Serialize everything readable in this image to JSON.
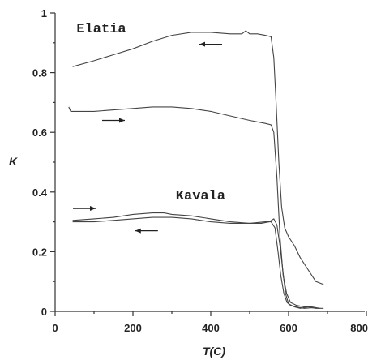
{
  "chart_data": {
    "type": "line",
    "xlabel": "T(C)",
    "ylabel": "K",
    "xlim": [
      0,
      800
    ],
    "ylim": [
      0,
      1
    ],
    "x_ticks": [
      "0",
      "200",
      "400",
      "600",
      "800"
    ],
    "y_ticks": [
      "0",
      "0.2",
      "0.4",
      "0.6",
      "0.8",
      "1"
    ],
    "grid": false,
    "annotations": [
      {
        "text": "Elatia",
        "x": 55,
        "y": 0.935
      },
      {
        "text": "Kavala",
        "x": 310,
        "y": 0.375
      }
    ],
    "arrows": [
      {
        "direction": "left",
        "x": 400,
        "y": 0.895
      },
      {
        "direction": "right",
        "x": 150,
        "y": 0.64
      },
      {
        "direction": "right",
        "x": 75,
        "y": 0.345
      },
      {
        "direction": "left",
        "x": 235,
        "y": 0.27
      }
    ],
    "series": [
      {
        "x": [
          45,
          100,
          150,
          200,
          250,
          300,
          350,
          400,
          450,
          480,
          490,
          500,
          520,
          540,
          555,
          562,
          568,
          575,
          582,
          590,
          600,
          615,
          630,
          650,
          670,
          690
        ],
        "values": [
          0.82,
          0.84,
          0.86,
          0.88,
          0.905,
          0.925,
          0.935,
          0.935,
          0.93,
          0.93,
          0.94,
          0.93,
          0.93,
          0.925,
          0.92,
          0.85,
          0.7,
          0.5,
          0.35,
          0.28,
          0.25,
          0.22,
          0.18,
          0.14,
          0.1,
          0.09
        ]
      },
      {
        "x": [
          35,
          40,
          60,
          100,
          150,
          200,
          250,
          300,
          350,
          400,
          450,
          500,
          540,
          555,
          562,
          570,
          578,
          586,
          595,
          605,
          620,
          640,
          660,
          680
        ],
        "values": [
          0.685,
          0.67,
          0.67,
          0.67,
          0.675,
          0.68,
          0.685,
          0.685,
          0.68,
          0.67,
          0.655,
          0.64,
          0.63,
          0.625,
          0.6,
          0.45,
          0.25,
          0.12,
          0.06,
          0.03,
          0.02,
          0.015,
          0.015,
          0.01
        ]
      },
      {
        "x": [
          45,
          100,
          150,
          200,
          250,
          280,
          300,
          350,
          400,
          450,
          500,
          530,
          550,
          562,
          570,
          578,
          585,
          592,
          600,
          615,
          630,
          650,
          670,
          690
        ],
        "values": [
          0.305,
          0.31,
          0.315,
          0.325,
          0.33,
          0.33,
          0.325,
          0.32,
          0.31,
          0.3,
          0.295,
          0.295,
          0.3,
          0.31,
          0.29,
          0.22,
          0.14,
          0.06,
          0.025,
          0.015,
          0.01,
          0.015,
          0.01,
          0.01
        ]
      },
      {
        "x": [
          45,
          100,
          150,
          200,
          250,
          300,
          350,
          400,
          450,
          500,
          540,
          555,
          565,
          573,
          580,
          588,
          596,
          605,
          620,
          640,
          660,
          680
        ],
        "values": [
          0.3,
          0.3,
          0.305,
          0.31,
          0.315,
          0.315,
          0.31,
          0.3,
          0.295,
          0.295,
          0.3,
          0.3,
          0.28,
          0.2,
          0.12,
          0.06,
          0.03,
          0.02,
          0.015,
          0.01,
          0.012,
          0.01
        ]
      }
    ]
  }
}
